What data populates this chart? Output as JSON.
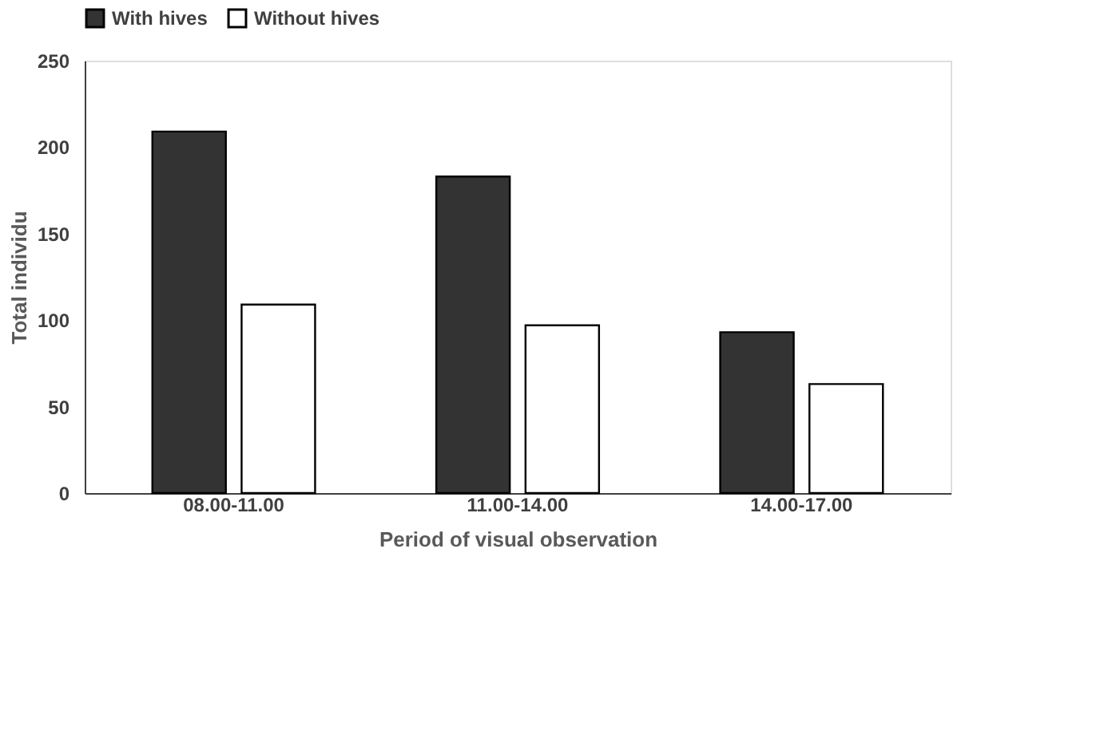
{
  "chart_data": {
    "type": "bar",
    "xlabel": "Period of visual observation",
    "ylabel": "Total individu",
    "categories": [
      "08.00-11.00",
      "11.00-14.00",
      "14.00-17.00"
    ],
    "series": [
      {
        "name": "With hives",
        "color": "#333333",
        "values": [
          209,
          183,
          93
        ]
      },
      {
        "name": "Without hives",
        "color": "#ffffff",
        "values": [
          109,
          97,
          63
        ]
      }
    ],
    "ylim": [
      0,
      250
    ],
    "yticks": [
      0,
      50,
      100,
      150,
      200,
      250
    ],
    "grid": false,
    "legend": "top"
  }
}
